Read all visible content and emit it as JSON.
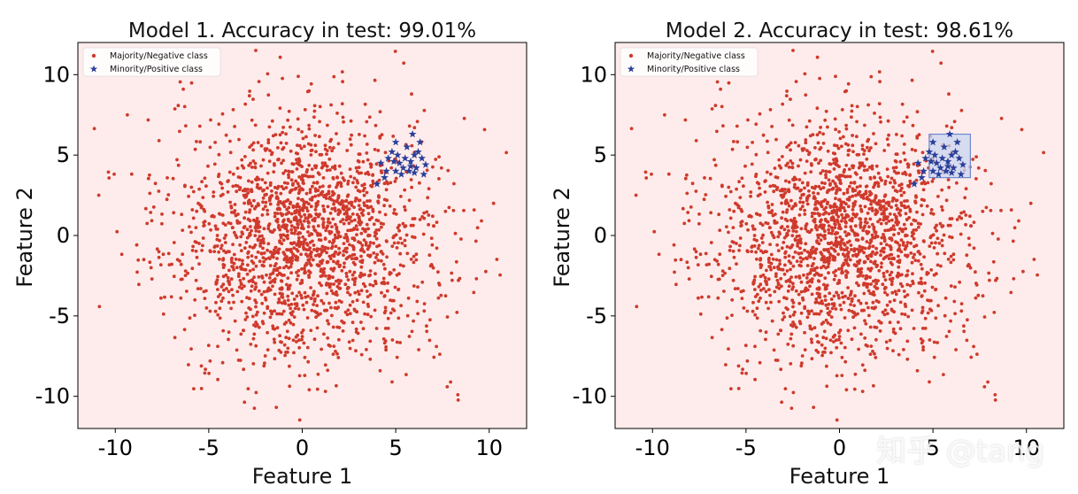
{
  "watermark": "知乎 @tang",
  "colors": {
    "background": "#fdeceb",
    "majority": "#cf3a2c",
    "minority": "#2b3f9a",
    "box_fill": "#c8d6f2",
    "box_edge": "#6b88d0"
  },
  "chart_data": [
    {
      "type": "scatter",
      "title": "Model 1. Accuracy in test: 99.01%",
      "xlabel": "Feature 1",
      "ylabel": "Feature 2",
      "xlim": [
        -12,
        12
      ],
      "ylim": [
        -12,
        12
      ],
      "xticks": [
        -10,
        -5,
        0,
        5,
        10
      ],
      "yticks": [
        -10,
        -5,
        0,
        5,
        10
      ],
      "legend_position": "top-left",
      "series": [
        {
          "name": "Majority/Negative class",
          "marker": "dot",
          "color": "#cf3a2c",
          "distribution": {
            "center": [
              0,
              0
            ],
            "std": [
              3.6,
              3.8
            ],
            "count": 1900,
            "extent": [
              11.2,
              11.6
            ]
          }
        },
        {
          "name": "Minority/Positive class",
          "marker": "star",
          "color": "#2b3f9a",
          "points": [
            [
              5.2,
              4.5
            ],
            [
              5.5,
              4.8
            ],
            [
              5.8,
              4.3
            ],
            [
              5.0,
              4.0
            ],
            [
              6.0,
              5.0
            ],
            [
              5.6,
              5.5
            ],
            [
              4.8,
              5.2
            ],
            [
              5.9,
              6.3
            ],
            [
              6.4,
              4.8
            ],
            [
              6.5,
              3.8
            ],
            [
              5.3,
              3.8
            ],
            [
              4.2,
              4.5
            ],
            [
              4.5,
              4.0
            ],
            [
              5.0,
              5.8
            ],
            [
              6.3,
              5.8
            ],
            [
              5.7,
              4.0
            ],
            [
              4.9,
              4.6
            ],
            [
              6.1,
              4.2
            ],
            [
              4.0,
              3.2
            ],
            [
              6.6,
              4.4
            ],
            [
              5.4,
              4.2
            ],
            [
              6.2,
              5.2
            ],
            [
              4.6,
              4.8
            ],
            [
              5.1,
              5.0
            ],
            [
              5.8,
              4.6
            ],
            [
              6.0,
              3.9
            ],
            [
              4.4,
              3.6
            ]
          ]
        }
      ]
    },
    {
      "type": "scatter",
      "title": "Model 2. Accuracy in test: 98.61%",
      "xlabel": "Feature 1",
      "ylabel": "Feature 2",
      "xlim": [
        -12,
        12
      ],
      "ylim": [
        -12,
        12
      ],
      "xticks": [
        -10,
        -5,
        0,
        5,
        10
      ],
      "yticks": [
        -10,
        -5,
        0,
        5,
        10
      ],
      "legend_position": "top-left",
      "decision_box": {
        "x": [
          4.8,
          7.0
        ],
        "y": [
          3.6,
          6.3
        ]
      },
      "series": [
        {
          "name": "Majority/Negative class",
          "marker": "dot",
          "color": "#cf3a2c",
          "distribution": {
            "center": [
              0,
              0
            ],
            "std": [
              3.6,
              3.8
            ],
            "count": 1900,
            "extent": [
              11.2,
              11.6
            ]
          }
        },
        {
          "name": "Minority/Positive class",
          "marker": "star",
          "color": "#2b3f9a",
          "points": [
            [
              5.2,
              4.5
            ],
            [
              5.5,
              4.8
            ],
            [
              5.8,
              4.3
            ],
            [
              5.0,
              4.0
            ],
            [
              6.0,
              5.0
            ],
            [
              5.6,
              5.5
            ],
            [
              4.8,
              5.2
            ],
            [
              5.9,
              6.3
            ],
            [
              6.4,
              4.8
            ],
            [
              6.5,
              3.8
            ],
            [
              5.3,
              3.8
            ],
            [
              4.2,
              4.5
            ],
            [
              4.5,
              4.0
            ],
            [
              5.0,
              5.8
            ],
            [
              6.3,
              5.8
            ],
            [
              5.7,
              4.0
            ],
            [
              4.9,
              4.6
            ],
            [
              6.1,
              4.2
            ],
            [
              4.0,
              3.2
            ],
            [
              6.6,
              4.4
            ],
            [
              5.4,
              4.2
            ],
            [
              6.2,
              5.2
            ],
            [
              4.6,
              4.8
            ],
            [
              5.1,
              5.0
            ],
            [
              5.8,
              4.6
            ],
            [
              6.0,
              3.9
            ],
            [
              4.4,
              3.6
            ]
          ]
        }
      ]
    }
  ]
}
